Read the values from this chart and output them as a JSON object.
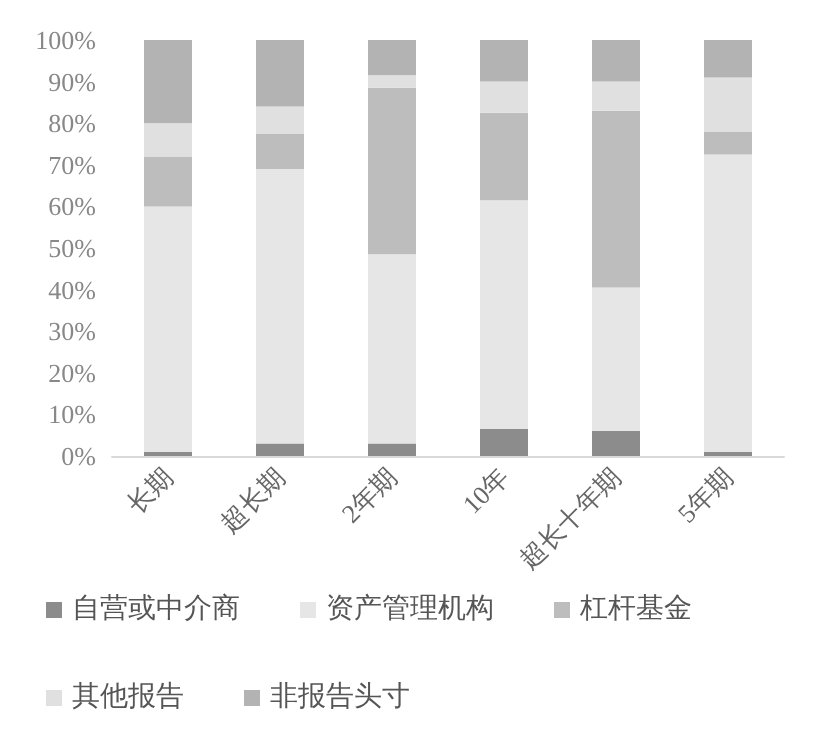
{
  "chart_data": {
    "type": "bar",
    "stacked": true,
    "categories": [
      "长期",
      "超长期",
      "2年期",
      "10年",
      "超长十年期",
      "5年期"
    ],
    "series": [
      {
        "name": "自营或中介商",
        "color": "#8c8c8c",
        "values": [
          1,
          3,
          3,
          6.5,
          6,
          1
        ]
      },
      {
        "name": "资产管理机构",
        "color": "#e6e6e6",
        "values": [
          59,
          66,
          45.5,
          55,
          34.5,
          71.5
        ]
      },
      {
        "name": "杠杆基金",
        "color": "#bdbdbd",
        "values": [
          12,
          8.5,
          40,
          21,
          42.5,
          5.5
        ]
      },
      {
        "name": "其他报告",
        "color": "#e0e0e0",
        "values": [
          8,
          6.5,
          3,
          7.5,
          7,
          13
        ]
      },
      {
        "name": "非报告头寸",
        "color": "#b3b3b3",
        "values": [
          20,
          16,
          8.5,
          10,
          10,
          9
        ]
      }
    ],
    "ylim": [
      0,
      100
    ],
    "yticks": [
      {
        "value": 0,
        "label": "0%"
      },
      {
        "value": 10,
        "label": "10%"
      },
      {
        "value": 20,
        "label": "20%"
      },
      {
        "value": 30,
        "label": "30%"
      },
      {
        "value": 40,
        "label": "40%"
      },
      {
        "value": 50,
        "label": "50%"
      },
      {
        "value": 60,
        "label": "60%"
      },
      {
        "value": 70,
        "label": "70%"
      },
      {
        "value": 80,
        "label": "80%"
      },
      {
        "value": 90,
        "label": "90%"
      },
      {
        "value": 100,
        "label": "100%"
      }
    ],
    "grid": false,
    "legend": "bottom"
  }
}
